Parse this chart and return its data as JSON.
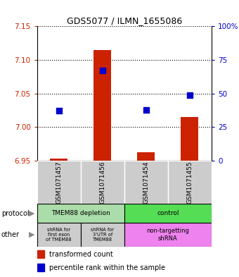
{
  "title": "GDS5077 / ILMN_1655086",
  "samples": [
    "GSM1071457",
    "GSM1071456",
    "GSM1071454",
    "GSM1071455"
  ],
  "transformed_counts": [
    6.953,
    7.115,
    6.963,
    7.015
  ],
  "percentile_ranks": [
    37,
    67,
    38,
    49
  ],
  "ylim": [
    6.95,
    7.15
  ],
  "yticks_left": [
    6.95,
    7.0,
    7.05,
    7.1,
    7.15
  ],
  "yticks_right": [
    0,
    25,
    50,
    75,
    100
  ],
  "protocol_labels": [
    "TMEM88 depletion",
    "control"
  ],
  "protocol_colors": [
    "#aaddaa",
    "#55dd55"
  ],
  "other_labels": [
    "shRNA for\nfirst exon\nof TMEM88",
    "shRNA for\n3'UTR of\nTMEM88",
    "non-targetting\nshRNA"
  ],
  "other_colors": [
    "#cccccc",
    "#cccccc",
    "#ee82ee"
  ],
  "bar_color": "#cc2200",
  "dot_color": "#0000cc",
  "bar_width": 0.4,
  "dot_size": 40,
  "background_color": "#ffffff",
  "label_color_left": "#cc2200",
  "label_color_right": "#0000cc",
  "sample_bg": "#cccccc"
}
